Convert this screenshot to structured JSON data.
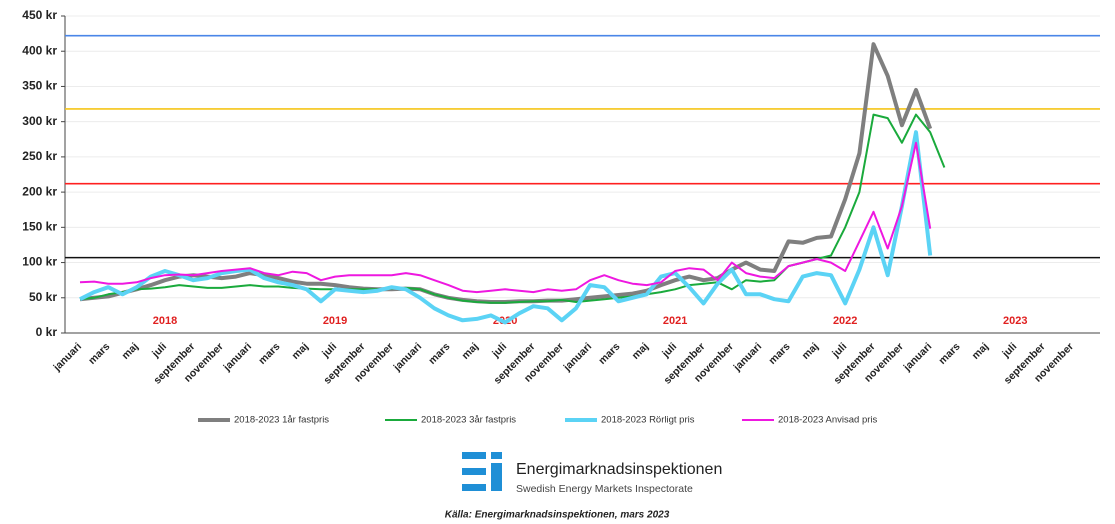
{
  "chart_data": {
    "type": "line",
    "categories": [
      "januari",
      null,
      "mars",
      null,
      "maj",
      null,
      "juli",
      null,
      "september",
      null,
      "november",
      null,
      "januari",
      null,
      "mars",
      null,
      "maj",
      null,
      "juli",
      null,
      "september",
      null,
      "november",
      null,
      "januari",
      null,
      "mars",
      null,
      "maj",
      null,
      "juli",
      null,
      "september",
      null,
      "november",
      null,
      "januari",
      null,
      "mars",
      null,
      "maj",
      null,
      "juli",
      null,
      "september",
      null,
      "november",
      null,
      "januari",
      null,
      "mars",
      null,
      "maj",
      null,
      "juli",
      null,
      "september",
      null,
      "november",
      null,
      "januari",
      null,
      "mars",
      null,
      "maj",
      null,
      "juli",
      null,
      "september",
      null,
      "november",
      null
    ],
    "year_labels": [
      "2018",
      "2019",
      "2020",
      "2021",
      "2022",
      "2023"
    ],
    "ylim": [
      0,
      450
    ],
    "yticks": [
      {
        "value": 0,
        "label": "0 kr"
      },
      {
        "value": 50,
        "label": "50 kr"
      },
      {
        "value": 100,
        "label": "100 kr"
      },
      {
        "value": 150,
        "label": "150 kr"
      },
      {
        "value": 200,
        "label": "200 kr"
      },
      {
        "value": 250,
        "label": "250 kr"
      },
      {
        "value": 300,
        "label": "300 kr"
      },
      {
        "value": 350,
        "label": "350 kr"
      },
      {
        "value": 400,
        "label": "400 kr"
      },
      {
        "value": 450,
        "label": "450 kr"
      }
    ],
    "grid": true,
    "legend": "bottom",
    "reference_lines": [
      {
        "value": 422,
        "color": "#4a86e8"
      },
      {
        "value": 318,
        "color": "#f5c518"
      },
      {
        "value": 212,
        "color": "#ff2020"
      },
      {
        "value": 107,
        "color": "#111111"
      }
    ],
    "series": [
      {
        "name": "2018-2023 1år fastpris",
        "color": "#7f7f7f",
        "values": [
          48,
          50,
          52,
          57,
          62,
          68,
          75,
          80,
          82,
          80,
          78,
          80,
          85,
          82,
          78,
          73,
          70,
          70,
          68,
          65,
          63,
          62,
          62,
          63,
          62,
          55,
          50,
          47,
          45,
          44,
          44,
          45,
          45,
          46,
          46,
          48,
          50,
          52,
          54,
          56,
          60,
          68,
          75,
          80,
          75,
          78,
          90,
          100,
          90,
          88,
          130,
          128,
          135,
          137,
          190,
          255,
          410,
          365,
          295,
          345,
          290,
          null,
          null,
          null,
          null,
          null,
          null,
          null,
          null,
          null,
          null,
          null
        ]
      },
      {
        "name": "2018-2023 3år fastpris",
        "color": "#1aaa3c",
        "values": [
          48,
          50,
          55,
          58,
          62,
          63,
          65,
          68,
          66,
          64,
          64,
          66,
          68,
          66,
          66,
          64,
          63,
          62,
          62,
          62,
          62,
          62,
          63,
          64,
          62,
          55,
          50,
          46,
          44,
          43,
          43,
          44,
          45,
          45,
          47,
          44,
          46,
          48,
          50,
          52,
          55,
          58,
          62,
          68,
          70,
          72,
          62,
          75,
          73,
          75,
          95,
          100,
          105,
          110,
          150,
          200,
          310,
          305,
          270,
          310,
          285,
          235,
          null,
          null,
          null,
          null,
          null,
          null,
          null,
          null,
          null,
          null
        ]
      },
      {
        "name": "2018-2023 Rörligt pris",
        "color": "#5bd3f5",
        "values": [
          48,
          58,
          65,
          55,
          65,
          80,
          88,
          82,
          75,
          78,
          85,
          88,
          90,
          78,
          72,
          68,
          62,
          45,
          62,
          60,
          58,
          60,
          65,
          62,
          50,
          35,
          25,
          18,
          20,
          25,
          15,
          28,
          38,
          35,
          18,
          35,
          68,
          65,
          45,
          50,
          55,
          80,
          85,
          65,
          42,
          70,
          90,
          55,
          55,
          48,
          45,
          80,
          85,
          82,
          42,
          90,
          150,
          82,
          180,
          285,
          110,
          null,
          null,
          null,
          null,
          null,
          null,
          null,
          null,
          null,
          null,
          null
        ]
      },
      {
        "name": "2018-2023 Anvisad pris",
        "color": "#ee18e0",
        "values": [
          72,
          73,
          70,
          70,
          72,
          78,
          82,
          83,
          82,
          85,
          88,
          90,
          92,
          85,
          82,
          87,
          85,
          75,
          80,
          82,
          82,
          82,
          82,
          85,
          82,
          75,
          68,
          60,
          58,
          60,
          62,
          60,
          58,
          62,
          60,
          62,
          75,
          82,
          75,
          70,
          68,
          72,
          88,
          92,
          90,
          75,
          100,
          85,
          80,
          78,
          95,
          100,
          105,
          100,
          88,
          130,
          172,
          120,
          180,
          270,
          148,
          null,
          null,
          null,
          null,
          null,
          null,
          null,
          null,
          null,
          null,
          null
        ]
      }
    ]
  },
  "logo_name": "Energimarknadsinspektionen",
  "logo_subtitle": "Swedish Energy Markets Inspectorate",
  "source": "Källa: Energimarknadsinspektionen, mars 2023"
}
